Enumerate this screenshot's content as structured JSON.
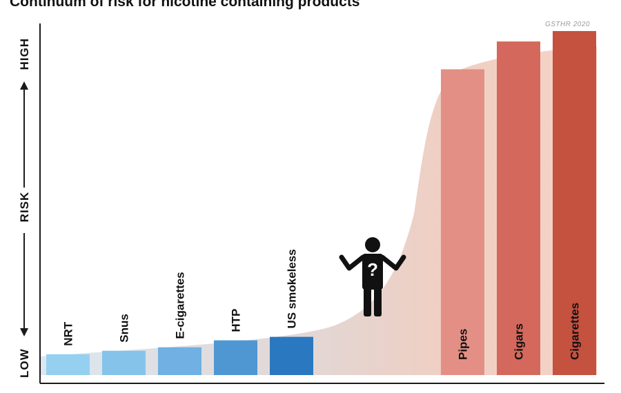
{
  "chart_data": {
    "type": "bar",
    "title": "Continuum of risk for nicotine containing products",
    "source": "GSTHR 2020",
    "y_axis": {
      "low": "LOW",
      "mid": "RISK",
      "high": "HIGH"
    },
    "ylim": [
      0,
      100
    ],
    "categories": [
      "NRT",
      "Snus",
      "E-cigarettes",
      "HTP",
      "US smokeless",
      "Pipes",
      "Cigars",
      "Cigarettes"
    ],
    "values": [
      6,
      7,
      8,
      10,
      11,
      88,
      96,
      99
    ],
    "bar_colors": [
      "#96d0f0",
      "#86c3eb",
      "#70b0e2",
      "#4f97d3",
      "#2a78bf",
      "#e38f85",
      "#d4685c",
      "#c5513f"
    ],
    "label_colors": [
      "#111111",
      "#111111",
      "#111111",
      "#111111",
      "#111111",
      "#111111",
      "#111111",
      "#111111"
    ],
    "figure_icon": "person-question-icon"
  }
}
